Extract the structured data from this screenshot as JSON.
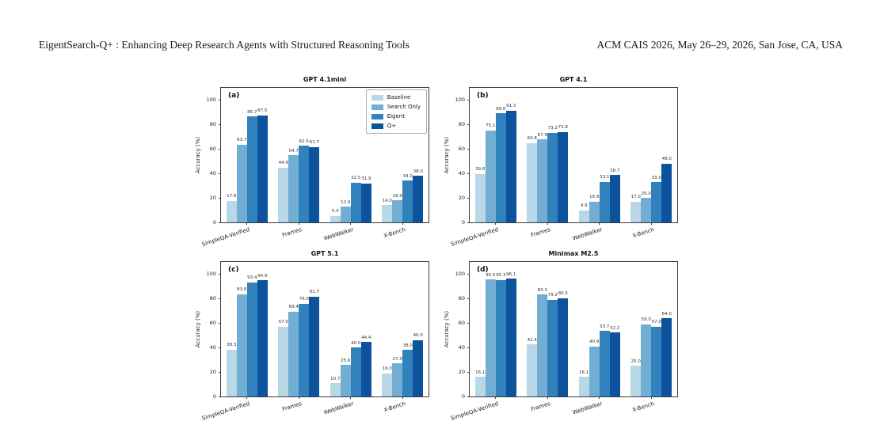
{
  "page": {
    "header_left": "EigentSearch-Q+ : Enhancing Deep Research Agents with Structured Reasoning Tools",
    "header_right": "ACM CAIS 2026, May 26–29, 2026, San Jose, CA, USA"
  },
  "figure": {
    "legend": {
      "position": "upper right of panel (a)",
      "entries": [
        {
          "label": "Baseline",
          "color": "#b8d8e8"
        },
        {
          "label": "Search Only",
          "color": "#72add4"
        },
        {
          "label": "Eigent",
          "color": "#3181bd"
        },
        {
          "label": "Q+",
          "color": "#0d529c"
        }
      ]
    }
  },
  "chart_data": [
    {
      "type": "bar",
      "panel": "(a)",
      "title": "GPT 4.1mini",
      "xlabel": "",
      "ylabel": "Accuracy (%)",
      "ylim": [
        0,
        110
      ],
      "yticks": [
        0,
        20,
        40,
        60,
        80,
        100
      ],
      "grid": false,
      "legend_visible": true,
      "categories": [
        "SimpleQA-Verified",
        "Frames",
        "WebWalker",
        "X-Bench"
      ],
      "series": [
        {
          "name": "Baseline",
          "values": [
            17.8,
            44.9,
            5.4,
            14.0
          ]
        },
        {
          "name": "Search Only",
          "values": [
            63.7,
            54.7,
            12.9,
            18.0
          ]
        },
        {
          "name": "Eigent",
          "values": [
            86.7,
            62.5,
            32.5,
            34.0
          ]
        },
        {
          "name": "Q+",
          "values": [
            87.5,
            61.7,
            31.9,
            38.0
          ]
        }
      ]
    },
    {
      "type": "bar",
      "panel": "(b)",
      "title": "GPT 4.1",
      "xlabel": "",
      "ylabel": "Accuracy (%)",
      "ylim": [
        0,
        110
      ],
      "yticks": [
        0,
        20,
        40,
        60,
        80,
        100
      ],
      "grid": false,
      "legend_visible": false,
      "categories": [
        "SimpleQA-Verified",
        "Frames",
        "WebWalker",
        "X-Bench"
      ],
      "series": [
        {
          "name": "Baseline",
          "values": [
            39.8,
            64.8,
            9.9,
            17.0
          ]
        },
        {
          "name": "Search Only",
          "values": [
            75.1,
            67.9,
            16.9,
            20.0
          ]
        },
        {
          "name": "Eigent",
          "values": [
            89.0,
            73.2,
            33.1,
            33.0
          ]
        },
        {
          "name": "Q+",
          "values": [
            91.3,
            73.8,
            38.7,
            48.0
          ]
        }
      ]
    },
    {
      "type": "bar",
      "panel": "(c)",
      "title": "GPT 5.1",
      "xlabel": "",
      "ylabel": "Accuracy (%)",
      "ylim": [
        0,
        110
      ],
      "yticks": [
        0,
        20,
        40,
        60,
        80,
        100
      ],
      "grid": false,
      "legend_visible": false,
      "categories": [
        "SimpleQA-Verified",
        "Frames",
        "WebWalker",
        "X-Bench"
      ],
      "series": [
        {
          "name": "Baseline",
          "values": [
            38.3,
            57.0,
            10.7,
            19.0
          ]
        },
        {
          "name": "Search Only",
          "values": [
            83.6,
            69.4,
            25.6,
            27.0
          ]
        },
        {
          "name": "Eigent",
          "values": [
            93.4,
            76.0,
            40.0,
            38.0
          ]
        },
        {
          "name": "Q+",
          "values": [
            94.9,
            81.7,
            44.4,
            46.0
          ]
        }
      ]
    },
    {
      "type": "bar",
      "panel": "(d)",
      "title": "Minimax M2.5",
      "xlabel": "",
      "ylabel": "Accuracy (%)",
      "ylim": [
        0,
        110
      ],
      "yticks": [
        0,
        20,
        40,
        60,
        80,
        100
      ],
      "grid": false,
      "legend_visible": false,
      "categories": [
        "SimpleQA-Verified",
        "Frames",
        "WebWalker",
        "X-Bench"
      ],
      "series": [
        {
          "name": "Baseline",
          "values": [
            16.1,
            42.4,
            16.1,
            25.0
          ]
        },
        {
          "name": "Search Only",
          "values": [
            95.5,
            83.3,
            40.9,
            59.0
          ]
        },
        {
          "name": "Eigent",
          "values": [
            95.3,
            79.2,
            53.7,
            57.0
          ]
        },
        {
          "name": "Q+",
          "values": [
            96.1,
            80.5,
            52.2,
            64.0
          ]
        }
      ]
    }
  ]
}
